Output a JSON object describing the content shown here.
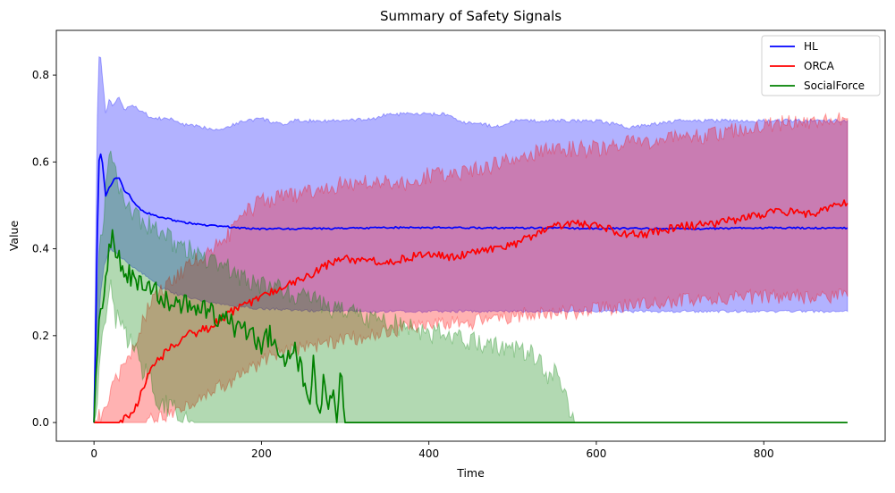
{
  "chart_data": {
    "type": "line",
    "title": "Summary of Safety Signals",
    "xlabel": "Time",
    "ylabel": "Value",
    "xlim": [
      -45,
      945
    ],
    "ylim": [
      -0.043,
      0.903
    ],
    "xticks": [
      0,
      200,
      400,
      600,
      800
    ],
    "xtick_labels": [
      "0",
      "200",
      "400",
      "600",
      "800"
    ],
    "yticks": [
      0.0,
      0.2,
      0.4,
      0.6,
      0.8
    ],
    "ytick_labels": [
      "0.0",
      "0.2",
      "0.4",
      "0.6",
      "0.8"
    ],
    "grid": false,
    "legend_position": "top-right",
    "band_alpha": 0.3,
    "series": [
      {
        "name": "HL",
        "color": "#0000ff",
        "mean": [
          [
            0,
            0
          ],
          [
            3,
            0.3
          ],
          [
            5,
            0.58
          ],
          [
            7,
            0.625
          ],
          [
            10,
            0.6
          ],
          [
            14,
            0.52
          ],
          [
            18,
            0.54
          ],
          [
            24,
            0.56
          ],
          [
            30,
            0.565
          ],
          [
            36,
            0.535
          ],
          [
            42,
            0.525
          ],
          [
            50,
            0.5
          ],
          [
            60,
            0.485
          ],
          [
            75,
            0.475
          ],
          [
            90,
            0.468
          ],
          [
            110,
            0.46
          ],
          [
            130,
            0.455
          ],
          [
            150,
            0.452
          ],
          [
            175,
            0.448
          ],
          [
            200,
            0.446
          ],
          [
            250,
            0.446
          ],
          [
            300,
            0.447
          ],
          [
            350,
            0.449
          ],
          [
            400,
            0.449
          ],
          [
            500,
            0.448
          ],
          [
            600,
            0.447
          ],
          [
            700,
            0.446
          ],
          [
            800,
            0.448
          ],
          [
            900,
            0.448
          ]
        ],
        "lower": [
          [
            0,
            0
          ],
          [
            3,
            0.1
          ],
          [
            5,
            0.22
          ],
          [
            8,
            0.3
          ],
          [
            12,
            0.36
          ],
          [
            20,
            0.4
          ],
          [
            30,
            0.385
          ],
          [
            45,
            0.36
          ],
          [
            60,
            0.34
          ],
          [
            80,
            0.31
          ],
          [
            100,
            0.295
          ],
          [
            130,
            0.28
          ],
          [
            160,
            0.27
          ],
          [
            200,
            0.262
          ],
          [
            250,
            0.258
          ],
          [
            300,
            0.256
          ],
          [
            400,
            0.256
          ],
          [
            500,
            0.256
          ],
          [
            600,
            0.256
          ],
          [
            700,
            0.256
          ],
          [
            800,
            0.256
          ],
          [
            900,
            0.256
          ]
        ],
        "upper": [
          [
            0,
            0
          ],
          [
            3,
            0.6
          ],
          [
            5,
            0.82
          ],
          [
            7,
            0.86
          ],
          [
            10,
            0.8
          ],
          [
            14,
            0.71
          ],
          [
            18,
            0.74
          ],
          [
            24,
            0.73
          ],
          [
            30,
            0.75
          ],
          [
            36,
            0.72
          ],
          [
            45,
            0.73
          ],
          [
            55,
            0.72
          ],
          [
            70,
            0.7
          ],
          [
            90,
            0.7
          ],
          [
            110,
            0.685
          ],
          [
            130,
            0.68
          ],
          [
            150,
            0.675
          ],
          [
            180,
            0.695
          ],
          [
            200,
            0.7
          ],
          [
            225,
            0.685
          ],
          [
            240,
            0.695
          ],
          [
            300,
            0.695
          ],
          [
            335,
            0.7
          ],
          [
            350,
            0.71
          ],
          [
            380,
            0.71
          ],
          [
            420,
            0.71
          ],
          [
            440,
            0.69
          ],
          [
            460,
            0.69
          ],
          [
            480,
            0.68
          ],
          [
            500,
            0.695
          ],
          [
            600,
            0.695
          ],
          [
            640,
            0.68
          ],
          [
            700,
            0.695
          ],
          [
            800,
            0.695
          ],
          [
            860,
            0.695
          ],
          [
            900,
            0.695
          ]
        ]
      },
      {
        "name": "ORCA",
        "color": "#ff0000",
        "mean": [
          [
            0,
            0
          ],
          [
            30,
            0
          ],
          [
            45,
            0.015
          ],
          [
            55,
            0.06
          ],
          [
            65,
            0.11
          ],
          [
            80,
            0.15
          ],
          [
            95,
            0.18
          ],
          [
            110,
            0.2
          ],
          [
            125,
            0.21
          ],
          [
            140,
            0.22
          ],
          [
            160,
            0.25
          ],
          [
            180,
            0.27
          ],
          [
            200,
            0.29
          ],
          [
            225,
            0.31
          ],
          [
            250,
            0.33
          ],
          [
            275,
            0.36
          ],
          [
            300,
            0.38
          ],
          [
            325,
            0.37
          ],
          [
            350,
            0.37
          ],
          [
            375,
            0.38
          ],
          [
            400,
            0.39
          ],
          [
            425,
            0.38
          ],
          [
            450,
            0.39
          ],
          [
            475,
            0.4
          ],
          [
            500,
            0.41
          ],
          [
            525,
            0.43
          ],
          [
            550,
            0.45
          ],
          [
            575,
            0.46
          ],
          [
            600,
            0.45
          ],
          [
            625,
            0.44
          ],
          [
            650,
            0.43
          ],
          [
            675,
            0.44
          ],
          [
            700,
            0.45
          ],
          [
            725,
            0.455
          ],
          [
            750,
            0.46
          ],
          [
            775,
            0.47
          ],
          [
            800,
            0.48
          ],
          [
            825,
            0.485
          ],
          [
            850,
            0.48
          ],
          [
            875,
            0.49
          ],
          [
            900,
            0.505
          ]
        ],
        "lower": [
          [
            0,
            0
          ],
          [
            60,
            0
          ],
          [
            90,
            0.02
          ],
          [
            110,
            0.04
          ],
          [
            130,
            0.06
          ],
          [
            150,
            0.08
          ],
          [
            175,
            0.11
          ],
          [
            200,
            0.14
          ],
          [
            225,
            0.16
          ],
          [
            250,
            0.17
          ],
          [
            275,
            0.18
          ],
          [
            300,
            0.19
          ],
          [
            325,
            0.2
          ],
          [
            350,
            0.21
          ],
          [
            375,
            0.22
          ],
          [
            400,
            0.22
          ],
          [
            425,
            0.23
          ],
          [
            450,
            0.23
          ],
          [
            475,
            0.24
          ],
          [
            500,
            0.245
          ],
          [
            525,
            0.25
          ],
          [
            550,
            0.25
          ],
          [
            600,
            0.26
          ],
          [
            650,
            0.27
          ],
          [
            700,
            0.28
          ],
          [
            750,
            0.285
          ],
          [
            800,
            0.29
          ],
          [
            850,
            0.29
          ],
          [
            900,
            0.29
          ]
        ],
        "upper": [
          [
            0,
            0
          ],
          [
            10,
            0.02
          ],
          [
            25,
            0.09
          ],
          [
            40,
            0.14
          ],
          [
            55,
            0.22
          ],
          [
            70,
            0.29
          ],
          [
            85,
            0.31
          ],
          [
            100,
            0.34
          ],
          [
            120,
            0.37
          ],
          [
            140,
            0.4
          ],
          [
            160,
            0.43
          ],
          [
            180,
            0.48
          ],
          [
            200,
            0.51
          ],
          [
            225,
            0.52
          ],
          [
            250,
            0.53
          ],
          [
            275,
            0.54
          ],
          [
            300,
            0.55
          ],
          [
            325,
            0.55
          ],
          [
            350,
            0.56
          ],
          [
            375,
            0.55
          ],
          [
            400,
            0.57
          ],
          [
            425,
            0.57
          ],
          [
            450,
            0.58
          ],
          [
            475,
            0.59
          ],
          [
            500,
            0.61
          ],
          [
            525,
            0.62
          ],
          [
            550,
            0.63
          ],
          [
            575,
            0.63
          ],
          [
            600,
            0.63
          ],
          [
            625,
            0.64
          ],
          [
            650,
            0.65
          ],
          [
            675,
            0.65
          ],
          [
            700,
            0.66
          ],
          [
            725,
            0.66
          ],
          [
            750,
            0.67
          ],
          [
            775,
            0.68
          ],
          [
            800,
            0.68
          ],
          [
            825,
            0.69
          ],
          [
            850,
            0.69
          ],
          [
            875,
            0.7
          ],
          [
            900,
            0.7
          ]
        ]
      },
      {
        "name": "SocialForce",
        "color": "#008000",
        "mean": [
          [
            0,
            0
          ],
          [
            3,
            0.12
          ],
          [
            6,
            0.25
          ],
          [
            10,
            0.28
          ],
          [
            14,
            0.33
          ],
          [
            18,
            0.4
          ],
          [
            21,
            0.44
          ],
          [
            25,
            0.39
          ],
          [
            30,
            0.38
          ],
          [
            36,
            0.36
          ],
          [
            42,
            0.34
          ],
          [
            50,
            0.33
          ],
          [
            58,
            0.31
          ],
          [
            66,
            0.31
          ],
          [
            74,
            0.3
          ],
          [
            82,
            0.29
          ],
          [
            90,
            0.28
          ],
          [
            100,
            0.27
          ],
          [
            110,
            0.27
          ],
          [
            120,
            0.26
          ],
          [
            130,
            0.26
          ],
          [
            140,
            0.25
          ],
          [
            150,
            0.24
          ],
          [
            160,
            0.23
          ],
          [
            170,
            0.22
          ],
          [
            180,
            0.21
          ],
          [
            190,
            0.2
          ],
          [
            200,
            0.18
          ],
          [
            210,
            0.2
          ],
          [
            220,
            0.16
          ],
          [
            230,
            0.14
          ],
          [
            240,
            0.17
          ],
          [
            250,
            0.1
          ],
          [
            258,
            0.02
          ],
          [
            262,
            0.15
          ],
          [
            268,
            0.02
          ],
          [
            275,
            0.1
          ],
          [
            280,
            0.05
          ],
          [
            285,
            0.07
          ],
          [
            290,
            0.01
          ],
          [
            295,
            0.11
          ],
          [
            300,
            0
          ],
          [
            310,
            0
          ],
          [
            900,
            0
          ]
        ],
        "lower": [
          [
            0,
            0
          ],
          [
            3,
            0.05
          ],
          [
            6,
            0.12
          ],
          [
            10,
            0.2
          ],
          [
            15,
            0.26
          ],
          [
            20,
            0.3
          ],
          [
            25,
            0.25
          ],
          [
            30,
            0.23
          ],
          [
            40,
            0.2
          ],
          [
            50,
            0.16
          ],
          [
            60,
            0.12
          ],
          [
            70,
            0.08
          ],
          [
            80,
            0.05
          ],
          [
            90,
            0.03
          ],
          [
            100,
            0.02
          ],
          [
            120,
            0
          ],
          [
            140,
            0
          ],
          [
            900,
            0
          ]
        ],
        "upper": [
          [
            0,
            0
          ],
          [
            3,
            0.2
          ],
          [
            6,
            0.38
          ],
          [
            10,
            0.45
          ],
          [
            15,
            0.55
          ],
          [
            20,
            0.64
          ],
          [
            25,
            0.58
          ],
          [
            30,
            0.55
          ],
          [
            36,
            0.52
          ],
          [
            42,
            0.5
          ],
          [
            50,
            0.48
          ],
          [
            60,
            0.46
          ],
          [
            70,
            0.45
          ],
          [
            80,
            0.44
          ],
          [
            90,
            0.42
          ],
          [
            100,
            0.41
          ],
          [
            110,
            0.4
          ],
          [
            120,
            0.39
          ],
          [
            130,
            0.38
          ],
          [
            140,
            0.37
          ],
          [
            150,
            0.36
          ],
          [
            165,
            0.35
          ],
          [
            180,
            0.33
          ],
          [
            200,
            0.32
          ],
          [
            215,
            0.31
          ],
          [
            230,
            0.3
          ],
          [
            245,
            0.29
          ],
          [
            260,
            0.28
          ],
          [
            275,
            0.27
          ],
          [
            290,
            0.26
          ],
          [
            310,
            0.25
          ],
          [
            330,
            0.24
          ],
          [
            350,
            0.23
          ],
          [
            375,
            0.22
          ],
          [
            400,
            0.21
          ],
          [
            425,
            0.2
          ],
          [
            450,
            0.19
          ],
          [
            475,
            0.18
          ],
          [
            500,
            0.17
          ],
          [
            520,
            0.16
          ],
          [
            535,
            0.13
          ],
          [
            545,
            0.09
          ],
          [
            552,
            0.12
          ],
          [
            558,
            0.06
          ],
          [
            565,
            0.05
          ],
          [
            570,
            0.01
          ],
          [
            575,
            0
          ],
          [
            900,
            0
          ]
        ]
      }
    ]
  }
}
